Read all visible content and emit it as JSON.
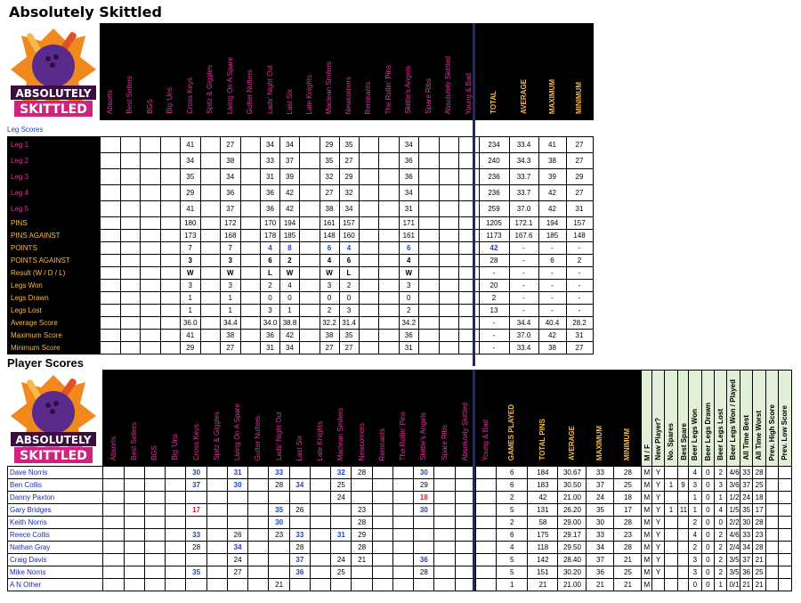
{
  "page": {
    "title": "Absolutely Skittled",
    "leg_scores_label": "Leg Scores",
    "player_scores_title": "Player Scores",
    "logo_text_1": "ABSOLUTELY",
    "logo_text_2": "SKITTLED"
  },
  "teams": [
    "Absorts",
    "Best Sellers",
    "BGS",
    "Big 'Uns",
    "Cross Keys",
    "Spitz & Giggles",
    "Living On A Spare",
    "Gutter Nutters",
    "Lads' Night Out",
    "Last Six",
    "Late Knights",
    "Maclean Smilers",
    "Newcomers",
    "Remnants",
    "The Rollin' Pins",
    "Skittle's Angels",
    "Spare Ribs",
    "Absolutely Skittled",
    "Young & Bad"
  ],
  "summary_headers": [
    "TOTAL",
    "AVERAGE",
    "MAXIMUM",
    "MINIMUM"
  ],
  "leg_rows": [
    {
      "label": "Leg 1",
      "cells": [
        "",
        "",
        "",
        "",
        "41",
        "",
        "27",
        "",
        "34",
        "34",
        "",
        "29",
        "35",
        "",
        "",
        "34",
        "",
        "",
        ""
      ],
      "summary": [
        "234",
        "33.4",
        "41",
        "27"
      ]
    },
    {
      "label": "Leg 2",
      "cells": [
        "",
        "",
        "",
        "",
        "34",
        "",
        "38",
        "",
        "33",
        "37",
        "",
        "35",
        "27",
        "",
        "",
        "36",
        "",
        "",
        ""
      ],
      "summary": [
        "240",
        "34.3",
        "38",
        "27"
      ]
    },
    {
      "label": "Leg 3",
      "cells": [
        "",
        "",
        "",
        "",
        "35",
        "",
        "34",
        "",
        "31",
        "39",
        "",
        "32",
        "29",
        "",
        "",
        "36",
        "",
        "",
        ""
      ],
      "summary": [
        "236",
        "33.7",
        "39",
        "29"
      ]
    },
    {
      "label": "Leg 4",
      "cells": [
        "",
        "",
        "",
        "",
        "29",
        "",
        "36",
        "",
        "36",
        "42",
        "",
        "27",
        "32",
        "",
        "",
        "34",
        "",
        "",
        ""
      ],
      "summary": [
        "236",
        "33.7",
        "42",
        "27"
      ]
    },
    {
      "label": "Leg 5",
      "cells": [
        "",
        "",
        "",
        "",
        "41",
        "",
        "37",
        "",
        "36",
        "42",
        "",
        "38",
        "34",
        "",
        "",
        "31",
        "",
        "",
        ""
      ],
      "summary": [
        "259",
        "37.0",
        "42",
        "31"
      ]
    }
  ],
  "stat_rows": [
    {
      "label": "PINS",
      "cells": [
        "",
        "",
        "",
        "",
        "180",
        "",
        "172",
        "",
        "170",
        "194",
        "",
        "161",
        "157",
        "",
        "",
        "171",
        "",
        "",
        ""
      ],
      "summary": [
        "1205",
        "172.1",
        "194",
        "157"
      ]
    },
    {
      "label": "PINS AGAINST",
      "cells": [
        "",
        "",
        "",
        "",
        "173",
        "",
        "168",
        "",
        "178",
        "185",
        "",
        "148",
        "160",
        "",
        "",
        "161",
        "",
        "",
        ""
      ],
      "summary": [
        "1173",
        "167.6",
        "185",
        "148"
      ]
    },
    {
      "label": "POINTS",
      "cells": [
        "",
        "",
        "",
        "",
        "7",
        "",
        "7",
        "",
        "4",
        "8",
        "",
        "6",
        "4",
        "",
        "",
        "6",
        "",
        "",
        ""
      ],
      "summary": [
        "42",
        "-",
        "-",
        "-"
      ]
    },
    {
      "label": "POINTS AGAINST",
      "cells": [
        "",
        "",
        "",
        "",
        "3",
        "",
        "3",
        "",
        "6",
        "2",
        "",
        "4",
        "6",
        "",
        "",
        "4",
        "",
        "",
        ""
      ],
      "summary": [
        "28",
        "-",
        "6",
        "2"
      ]
    },
    {
      "label": "Result (W / D / L)",
      "cells": [
        "",
        "",
        "",
        "",
        "W",
        "",
        "W",
        "",
        "L",
        "W",
        "",
        "W",
        "L",
        "",
        "",
        "W",
        "",
        "",
        ""
      ],
      "summary": [
        "-",
        "-",
        "-",
        "-"
      ]
    },
    {
      "label": "Legs Won",
      "cells": [
        "",
        "",
        "",
        "",
        "3",
        "",
        "3",
        "",
        "2",
        "4",
        "",
        "3",
        "2",
        "",
        "",
        "3",
        "",
        "",
        ""
      ],
      "summary": [
        "20",
        "-",
        "-",
        "-"
      ]
    },
    {
      "label": "Legs Drawn",
      "cells": [
        "",
        "",
        "",
        "",
        "1",
        "",
        "1",
        "",
        "0",
        "0",
        "",
        "0",
        "0",
        "",
        "",
        "0",
        "",
        "",
        ""
      ],
      "summary": [
        "2",
        "-",
        "-",
        "-"
      ]
    },
    {
      "label": "Legs Lost",
      "cells": [
        "",
        "",
        "",
        "",
        "1",
        "",
        "1",
        "",
        "3",
        "1",
        "",
        "2",
        "3",
        "",
        "",
        "2",
        "",
        "",
        ""
      ],
      "summary": [
        "13",
        "-",
        "-",
        "-"
      ]
    },
    {
      "label": "Average Score",
      "cells": [
        "",
        "",
        "",
        "",
        "36.0",
        "",
        "34.4",
        "",
        "34.0",
        "38.8",
        "",
        "32.2",
        "31.4",
        "",
        "",
        "34.2",
        "",
        "",
        ""
      ],
      "summary": [
        "-",
        "34.4",
        "40.4",
        "28.2"
      ]
    },
    {
      "label": "Maximum Score",
      "cells": [
        "",
        "",
        "",
        "",
        "41",
        "",
        "38",
        "",
        "36",
        "42",
        "",
        "38",
        "35",
        "",
        "",
        "36",
        "",
        "",
        ""
      ],
      "summary": [
        "-",
        "37.0",
        "42",
        "31"
      ]
    },
    {
      "label": "Minimum Score",
      "cells": [
        "",
        "",
        "",
        "",
        "29",
        "",
        "27",
        "",
        "31",
        "34",
        "",
        "27",
        "27",
        "",
        "",
        "31",
        "",
        "",
        ""
      ],
      "summary": [
        "-",
        "33.4",
        "38",
        "27"
      ]
    }
  ],
  "player_summary_headers": [
    "GAMES PLAYED",
    "TOTAL PINS",
    "AVERAGE",
    "MAXIMUM",
    "MINIMUM"
  ],
  "player_extra_headers": [
    "M / F",
    "New Player?",
    "No. Spares",
    "Best Spare",
    "Beer Legs Won",
    "Beer Legs Drawn",
    "Beer Legs Lost",
    "Beer Legs Won / Played",
    "All Time Best",
    "All Time Worst",
    "Prev. High Score",
    "Prev. Low Score"
  ],
  "players": [
    {
      "name": "Dave Norris",
      "cells": [
        "",
        "",
        "",
        "",
        "30",
        "",
        "31",
        "",
        "33",
        "",
        "",
        "32",
        "28",
        "",
        "",
        "30",
        "",
        "",
        ""
      ],
      "summary": [
        "6",
        "184",
        "30.67",
        "33",
        "28"
      ],
      "extra": [
        "M",
        "Y",
        "",
        "",
        "4",
        "0",
        "2",
        "4/6",
        "33",
        "28",
        "",
        ""
      ]
    },
    {
      "name": "Ben Collis",
      "cells": [
        "",
        "",
        "",
        "",
        "37",
        "",
        "30",
        "",
        "28",
        "34",
        "",
        "25",
        "",
        "",
        "",
        "29",
        "",
        "",
        ""
      ],
      "summary": [
        "6",
        "183",
        "30.50",
        "37",
        "25"
      ],
      "extra": [
        "M",
        "Y",
        "1",
        "9",
        "3",
        "0",
        "3",
        "3/6",
        "37",
        "25",
        "",
        ""
      ]
    },
    {
      "name": "Danny Paxton",
      "cells": [
        "",
        "",
        "",
        "",
        "",
        "",
        "",
        "",
        "",
        "",
        "",
        "24",
        "",
        "",
        "",
        "18",
        "",
        "",
        ""
      ],
      "summary": [
        "2",
        "42",
        "21.00",
        "24",
        "18"
      ],
      "extra": [
        "M",
        "Y",
        "",
        "",
        "1",
        "0",
        "1",
        "1/2",
        "24",
        "18",
        "",
        ""
      ]
    },
    {
      "name": "Gary Bridges",
      "cells": [
        "",
        "",
        "",
        "",
        "17",
        "",
        "",
        "",
        "35",
        "26",
        "",
        "",
        "23",
        "",
        "",
        "30",
        "",
        "",
        ""
      ],
      "summary": [
        "5",
        "131",
        "26.20",
        "35",
        "17"
      ],
      "extra": [
        "M",
        "Y",
        "1",
        "11",
        "1",
        "0",
        "4",
        "1/5",
        "35",
        "17",
        "",
        ""
      ]
    },
    {
      "name": "Keith Norris",
      "cells": [
        "",
        "",
        "",
        "",
        "",
        "",
        "",
        "",
        "30",
        "",
        "",
        "",
        "28",
        "",
        "",
        "",
        "",
        "",
        ""
      ],
      "summary": [
        "2",
        "58",
        "29.00",
        "30",
        "28"
      ],
      "extra": [
        "M",
        "Y",
        "",
        "",
        "2",
        "0",
        "0",
        "2/2",
        "30",
        "28",
        "",
        ""
      ]
    },
    {
      "name": "Reece Collis",
      "cells": [
        "",
        "",
        "",
        "",
        "33",
        "",
        "26",
        "",
        "23",
        "33",
        "",
        "31",
        "29",
        "",
        "",
        "",
        "",
        "",
        ""
      ],
      "summary": [
        "6",
        "175",
        "29.17",
        "33",
        "23"
      ],
      "extra": [
        "M",
        "Y",
        "",
        "",
        "4",
        "0",
        "2",
        "4/6",
        "33",
        "23",
        "",
        ""
      ]
    },
    {
      "name": "Nathan Gray",
      "cells": [
        "",
        "",
        "",
        "",
        "28",
        "",
        "34",
        "",
        "",
        "28",
        "",
        "",
        "28",
        "",
        "",
        "",
        "",
        "",
        ""
      ],
      "summary": [
        "4",
        "118",
        "29.50",
        "34",
        "28"
      ],
      "extra": [
        "M",
        "Y",
        "",
        "",
        "2",
        "0",
        "2",
        "2/4",
        "34",
        "28",
        "",
        ""
      ]
    },
    {
      "name": "Craig Davis",
      "cells": [
        "",
        "",
        "",
        "",
        "",
        "",
        "24",
        "",
        "",
        "37",
        "",
        "24",
        "21",
        "",
        "",
        "36",
        "",
        "",
        ""
      ],
      "summary": [
        "5",
        "142",
        "28.40",
        "37",
        "21"
      ],
      "extra": [
        "M",
        "Y",
        "",
        "",
        "3",
        "0",
        "2",
        "3/5",
        "37",
        "21",
        "",
        ""
      ]
    },
    {
      "name": "Mike Norris",
      "cells": [
        "",
        "",
        "",
        "",
        "35",
        "",
        "27",
        "",
        "",
        "36",
        "",
        "25",
        "",
        "",
        "",
        "28",
        "",
        "",
        ""
      ],
      "summary": [
        "5",
        "151",
        "30.20",
        "36",
        "25"
      ],
      "extra": [
        "M",
        "Y",
        "",
        "",
        "3",
        "0",
        "2",
        "3/5",
        "36",
        "25",
        "",
        ""
      ]
    },
    {
      "name": "A N Other",
      "cells": [
        "",
        "",
        "",
        "",
        "",
        "",
        "",
        "",
        "21",
        "",
        "",
        "",
        "",
        "",
        "",
        "",
        "",
        "",
        ""
      ],
      "summary": [
        "1",
        "21",
        "21.00",
        "21",
        "21"
      ],
      "extra": [
        "M",
        "",
        "",
        "",
        "0",
        "0",
        "1",
        "0/1",
        "21",
        "21",
        "",
        ""
      ]
    }
  ],
  "colors": {
    "pink": "#e0349c",
    "orange": "#f6b94a",
    "blue": "#1c3fd6",
    "red": "#e02020",
    "green_header": "#e3f0d8",
    "divider": "#1b2a6e"
  }
}
